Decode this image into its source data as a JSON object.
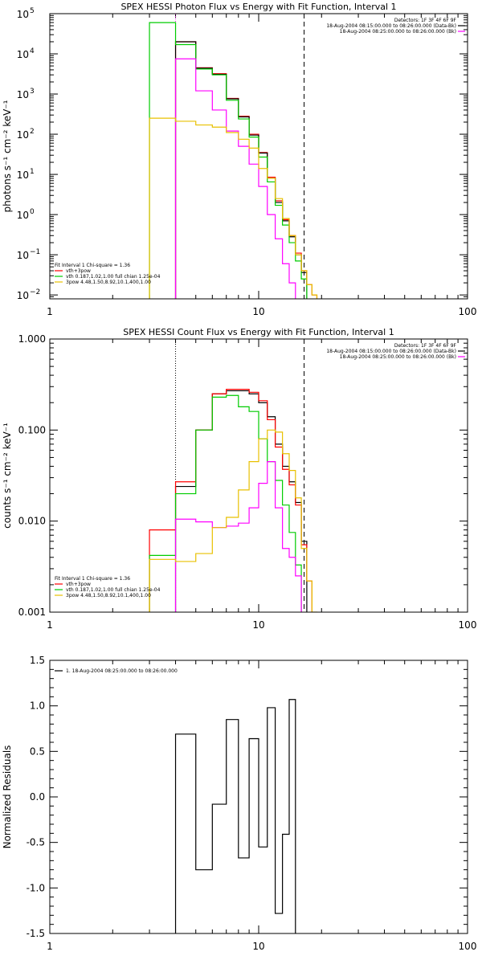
{
  "chart_data": [
    {
      "type": "line",
      "title": "SPEX HESSI Photon Flux vs Energy with Fit Function, Interval 1",
      "xlabel": "",
      "ylabel": "photons s⁻¹ cm⁻² keV⁻¹",
      "xscale": "log",
      "yscale": "log",
      "xlim": [
        1,
        100
      ],
      "ylim": [
        0.008,
        100000
      ],
      "xticks": [
        "1",
        "10",
        "100"
      ],
      "yticks": [
        {
          "m": "10",
          "e": "5",
          "v": 100000
        },
        {
          "m": "10",
          "e": "4",
          "v": 10000
        },
        {
          "m": "10",
          "e": "3",
          "v": 1000
        },
        {
          "m": "10",
          "e": "2",
          "v": 100
        },
        {
          "m": "10",
          "e": "1",
          "v": 10
        },
        {
          "m": "10",
          "e": "0",
          "v": 1
        },
        {
          "m": "10",
          "e": "−1",
          "v": 0.1
        },
        {
          "m": "10",
          "e": "−2",
          "v": 0.01
        }
      ],
      "edges": [
        3,
        4,
        5,
        6,
        7,
        8,
        9,
        10,
        11,
        12,
        13,
        14,
        15,
        16,
        17,
        18,
        19,
        20
      ],
      "series": [
        {
          "name": "vth+3pow",
          "color": "#ff0000",
          "values": [
            null,
            20000,
            4500,
            3200,
            780,
            280,
            100,
            35,
            8.5,
            2.2,
            0.75,
            0.3,
            0.11,
            0.04,
            0.018,
            0.01,
            null
          ]
        },
        {
          "name": "",
          "color": "#000000",
          "values": [
            null,
            20000,
            4400,
            3100,
            760,
            270,
            95,
            34,
            8.0,
            2.0,
            0.7,
            0.28,
            0.1,
            0.036,
            null,
            null,
            null
          ]
        },
        {
          "name": "vth 0.187,1.02,1.00  full chian 1.25e-04",
          "color": "#00cc00",
          "values": [
            60000,
            17000,
            4200,
            3000,
            700,
            240,
            85,
            27,
            6.5,
            1.7,
            0.55,
            0.2,
            0.07,
            0.025,
            null,
            null,
            null
          ]
        },
        {
          "name": "",
          "color": "#ff00ff",
          "values": [
            null,
            7500,
            1200,
            400,
            120,
            50,
            18,
            5,
            1.0,
            0.25,
            0.06,
            0.02,
            null,
            null,
            null,
            null,
            null
          ]
        },
        {
          "name": "3pow 4.48,1.50,8.92,10.1,400,1.00",
          "color": "#e8c000",
          "values": [
            250,
            210,
            170,
            150,
            110,
            75,
            45,
            14,
            8,
            2.5,
            0.8,
            0.3,
            0.1,
            0.04,
            0.018,
            0.01,
            null
          ]
        }
      ],
      "vlines": [
        {
          "x": 4.0,
          "color": "#ff00ff",
          "style": "dotted"
        },
        {
          "x": 16.5,
          "color": "#000000",
          "style": "dashed"
        }
      ],
      "legend_right": {
        "lines": [
          {
            "text": "Detectors: 1F 3F 4F 6F 9F",
            "color": null
          },
          {
            "text": "18-Aug-2004 08:15:00.000 to 08:26:00.000 (Data-Bk)",
            "color": "#000000"
          },
          {
            "text": "18-Aug-2004 08:25:00.000 to 08:26:00.000 (Bk)",
            "color": "#ff00ff"
          }
        ]
      },
      "legend_left": {
        "header": "Fit Interval  1    Chi-square = 1.36",
        "lines": [
          {
            "text": "vth+3pow",
            "color": "#ff0000"
          },
          {
            "text": "vth 0.187,1.02,1.00  full chian 1.25e-04",
            "color": "#00cc00"
          },
          {
            "text": "3pow 4.48,1.50,8.92,10.1,400,1.00",
            "color": "#e8c000"
          }
        ]
      }
    },
    {
      "type": "line",
      "title": "SPEX HESSI Count Flux vs Energy with Fit Function, Interval 1",
      "xlabel": "",
      "ylabel": "counts s⁻¹ cm⁻² keV⁻¹",
      "xscale": "log",
      "yscale": "log",
      "xlim": [
        1,
        100
      ],
      "ylim": [
        0.001,
        1.0
      ],
      "xticks": [
        "1",
        "10",
        "100"
      ],
      "yticks": [
        {
          "label": "1.000",
          "v": 1.0
        },
        {
          "label": "0.100",
          "v": 0.1
        },
        {
          "label": "0.010",
          "v": 0.01
        },
        {
          "label": "0.001",
          "v": 0.001
        }
      ],
      "edges": [
        3,
        4,
        5,
        6,
        7,
        8,
        9,
        10,
        11,
        12,
        13,
        14,
        15,
        16,
        17,
        18,
        19,
        20
      ],
      "series": [
        {
          "name": "",
          "color": "#000000",
          "values": [
            null,
            0.024,
            0.1,
            0.25,
            0.27,
            0.27,
            0.25,
            0.2,
            0.14,
            0.07,
            0.04,
            0.027,
            0.016,
            0.006,
            null,
            null,
            null
          ]
        },
        {
          "name": "vth+3pow",
          "color": "#ff0000",
          "values": [
            0.008,
            0.027,
            0.1,
            0.25,
            0.28,
            0.28,
            0.26,
            0.21,
            0.13,
            0.065,
            0.037,
            0.025,
            0.015,
            0.0055,
            0.0022,
            null,
            null
          ]
        },
        {
          "name": "vth 0.187,1.02,1.00  full chian 1.25e-04",
          "color": "#00cc00",
          "values": [
            0.0042,
            0.02,
            0.1,
            0.23,
            0.24,
            0.18,
            0.16,
            0.08,
            0.045,
            0.028,
            0.015,
            0.0075,
            0.0033,
            null,
            null,
            null,
            null
          ]
        },
        {
          "name": "",
          "color": "#ff00ff",
          "values": [
            null,
            0.0105,
            0.0098,
            0.0085,
            0.0088,
            0.0095,
            0.014,
            0.026,
            0.045,
            0.014,
            0.005,
            0.004,
            0.0025,
            null,
            null,
            null,
            null
          ]
        },
        {
          "name": "3pow 4.48,1.50,8.92,10.1,400,1.00",
          "color": "#e8c000",
          "values": [
            0.0038,
            0.0036,
            0.0044,
            0.0085,
            0.011,
            0.022,
            0.045,
            0.08,
            0.1,
            0.095,
            0.055,
            0.036,
            0.018,
            0.005,
            0.0022,
            0.001,
            null
          ]
        }
      ],
      "vlines": [
        {
          "x": 4.0,
          "color": "#000000",
          "style": "dotted"
        },
        {
          "x": 16.5,
          "color": "#000000",
          "style": "dashed"
        }
      ],
      "legend_right": {
        "lines": [
          {
            "text": "Detectors: 1F 3F 4F 6F 9F",
            "color": null
          },
          {
            "text": "18-Aug-2004 08:15:00.000 to 08:26:00.000 (Data-Bk)",
            "color": "#000000"
          },
          {
            "text": "18-Aug-2004 08:25:00.000 to 08:26:00.000 (Bk)",
            "color": "#ff00ff"
          }
        ]
      },
      "legend_left": {
        "header": "Fit Interval  1    Chi-square = 1.36",
        "lines": [
          {
            "text": "vth+3pow",
            "color": "#ff0000"
          },
          {
            "text": "vth 0.187,1.02,1.00  full chian 1.25e-04",
            "color": "#00cc00"
          },
          {
            "text": "3pow 4.48,1.50,8.92,10.1,400,1.00",
            "color": "#e8c000"
          }
        ]
      }
    },
    {
      "type": "line",
      "title": "",
      "xlabel": "",
      "ylabel": "Normalized Residuals",
      "xscale": "log",
      "yscale": "linear",
      "xlim": [
        1,
        100
      ],
      "ylim": [
        -1.5,
        1.5
      ],
      "xticks": [
        "1",
        "10",
        "100"
      ],
      "yticks": [
        {
          "label": "1.5",
          "v": 1.5
        },
        {
          "label": "1.0",
          "v": 1.0
        },
        {
          "label": "0.5",
          "v": 0.5
        },
        {
          "label": "0.0",
          "v": 0.0
        },
        {
          "label": "-0.5",
          "v": -0.5
        },
        {
          "label": "-1.0",
          "v": -1.0
        },
        {
          "label": "-1.5",
          "v": -1.5
        }
      ],
      "edges": [
        4,
        5,
        6,
        7,
        8,
        9,
        10,
        11,
        12,
        13,
        14,
        15,
        16,
        17
      ],
      "series": [
        {
          "name": "1. 18-Aug-2004 08:25:00.000 to 08:26:00.000",
          "color": "#000000",
          "values": [
            0.69,
            -0.8,
            -0.08,
            0.85,
            -0.67,
            0.64,
            -0.55,
            0.98,
            -1.28,
            -0.41,
            1.07,
            null,
            null
          ]
        }
      ],
      "residual_start": -1.5,
      "residual_end": -1.5,
      "legend_left": {
        "lines": [
          {
            "text": "1. 18-Aug-2004 08:25:00.000 to 08:26:00.000",
            "color": "#000000"
          }
        ]
      }
    }
  ]
}
